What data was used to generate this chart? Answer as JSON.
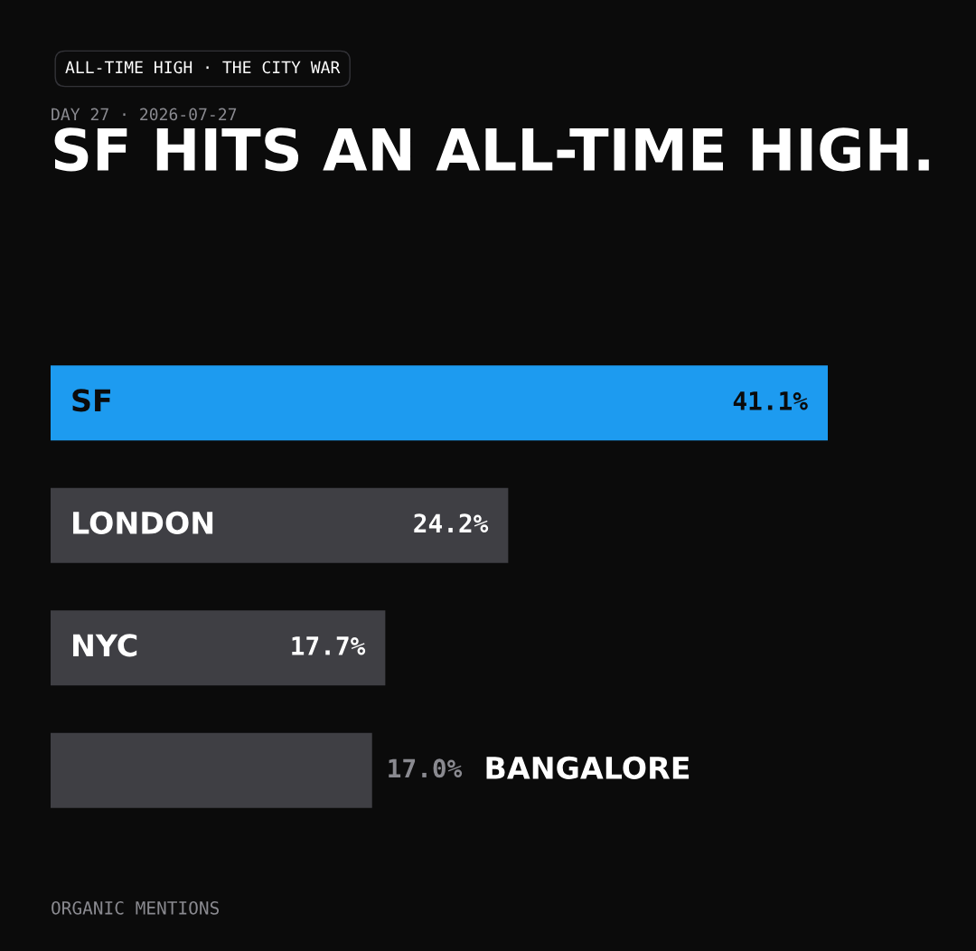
{
  "chart_data": {
    "type": "bar",
    "orientation": "horizontal",
    "title": "SF HITS AN ALL-TIME HIGH.",
    "subtitle": "DAY 27 · 2026-07-27",
    "categories": [
      "SF",
      "LONDON",
      "NYC",
      "BANGALORE"
    ],
    "values": [
      41.1,
      24.2,
      17.7,
      17.0
    ],
    "colors": [
      "#1d9bf0",
      "#3f3f44",
      "#3f3f44",
      "#3f3f44"
    ],
    "value_labels": [
      "41.1%",
      "24.2%",
      "17.7%",
      "17.0%"
    ],
    "xlim": [
      0,
      41.1
    ],
    "annotations": [
      "ALL-TIME HIGH · THE CITY WAR",
      "ORGANIC MENTIONS"
    ]
  }
}
